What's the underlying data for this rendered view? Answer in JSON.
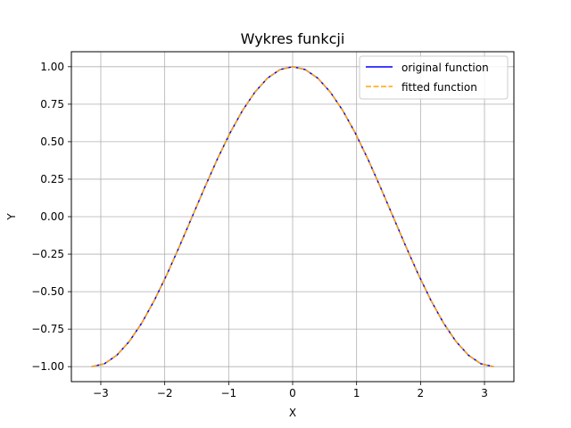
{
  "chart_data": {
    "type": "line",
    "title": "Wykres funkcji",
    "xlabel": "X",
    "ylabel": "Y",
    "xlim": [
      -3.46,
      3.46
    ],
    "ylim": [
      -1.1,
      1.1
    ],
    "xticks": [
      -3,
      -2,
      -1,
      0,
      1,
      2,
      3
    ],
    "xtick_labels": [
      "−3",
      "−2",
      "−1",
      "0",
      "1",
      "2",
      "3"
    ],
    "yticks": [
      -1.0,
      -0.75,
      -0.5,
      -0.25,
      0.0,
      0.25,
      0.5,
      0.75,
      1.0
    ],
    "ytick_labels": [
      "−1.00",
      "−0.75",
      "−0.50",
      "−0.25",
      "0.00",
      "0.25",
      "0.50",
      "0.75",
      "1.00"
    ],
    "grid": true,
    "legend_position": "upper right",
    "x": [
      -3.1416,
      -2.9452,
      -2.7489,
      -2.5525,
      -2.3562,
      -2.1598,
      -1.9635,
      -1.7671,
      -1.5708,
      -1.3744,
      -1.1781,
      -0.9817,
      -0.7854,
      -0.589,
      -0.3927,
      -0.1963,
      0.0,
      0.1963,
      0.3927,
      0.589,
      0.7854,
      0.9817,
      1.1781,
      1.3744,
      1.5708,
      1.7671,
      1.9635,
      2.1598,
      2.3562,
      2.5525,
      2.7489,
      2.9452,
      3.1416
    ],
    "series": [
      {
        "name": "original function",
        "color": "#0000ff",
        "style": "solid",
        "values": [
          -1.0,
          -0.981,
          -0.924,
          -0.831,
          -0.707,
          -0.556,
          -0.383,
          -0.195,
          0.0,
          0.195,
          0.383,
          0.556,
          0.707,
          0.831,
          0.924,
          0.981,
          1.0,
          0.981,
          0.924,
          0.831,
          0.707,
          0.556,
          0.383,
          0.195,
          0.0,
          -0.195,
          -0.383,
          -0.556,
          -0.707,
          -0.831,
          -0.924,
          -0.981,
          -1.0
        ]
      },
      {
        "name": "fitted function",
        "color": "#ffa500",
        "style": "dashed",
        "values": [
          -1.0,
          -0.981,
          -0.924,
          -0.831,
          -0.707,
          -0.556,
          -0.383,
          -0.195,
          0.0,
          0.195,
          0.383,
          0.556,
          0.707,
          0.831,
          0.924,
          0.981,
          1.0,
          0.981,
          0.924,
          0.831,
          0.707,
          0.556,
          0.383,
          0.195,
          0.0,
          -0.195,
          -0.383,
          -0.556,
          -0.707,
          -0.831,
          -0.924,
          -0.981,
          -1.0
        ]
      }
    ]
  }
}
